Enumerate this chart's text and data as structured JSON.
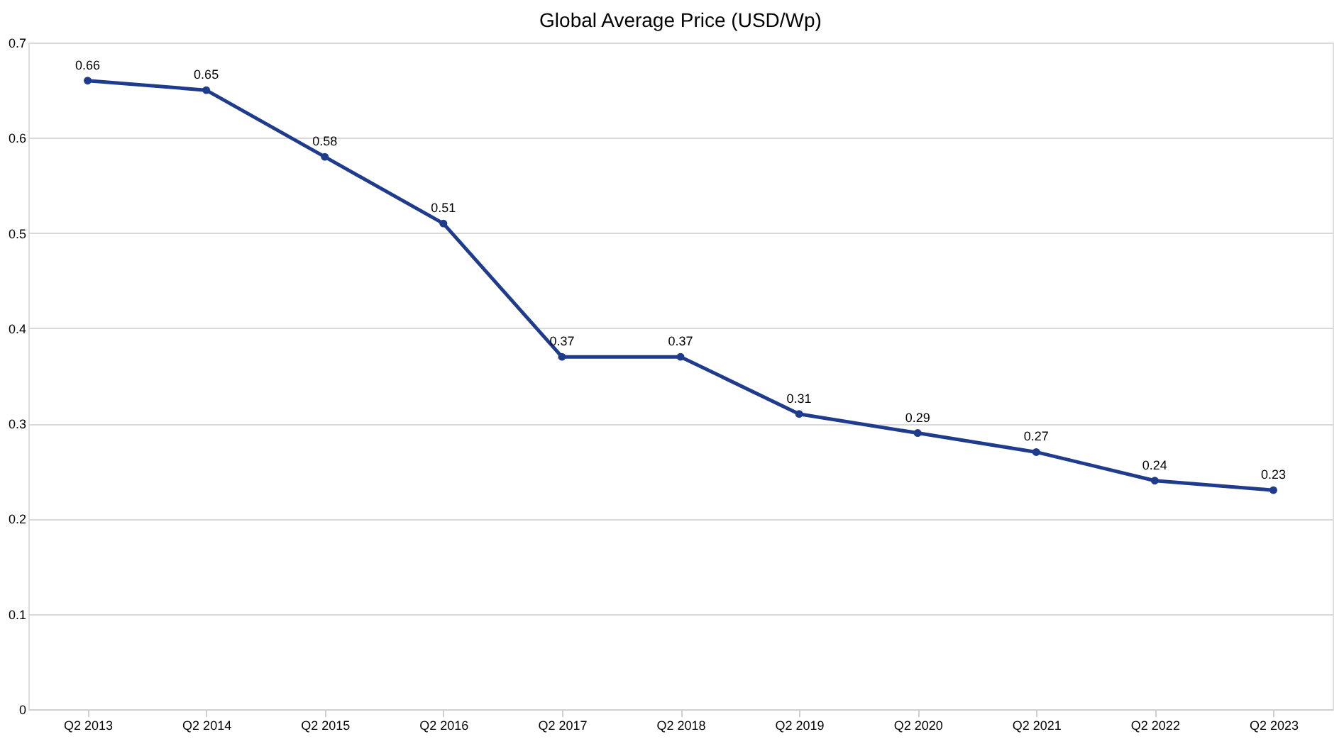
{
  "chart_data": {
    "type": "line",
    "title": "Global Average Price (USD/Wp)",
    "categories": [
      "Q2 2013",
      "Q2 2014",
      "Q2 2015",
      "Q2 2016",
      "Q2 2017",
      "Q2 2018",
      "Q2 2019",
      "Q2 2020",
      "Q2 2021",
      "Q2 2022",
      "Q2 2023"
    ],
    "series": [
      {
        "color": "#1f3b8c",
        "values": [
          0.66,
          0.65,
          0.58,
          0.51,
          0.37,
          0.37,
          0.31,
          0.29,
          0.27,
          0.24,
          0.23
        ]
      }
    ],
    "ylim": [
      0,
      0.7
    ],
    "yticks": [
      0,
      0.1,
      0.2,
      0.3,
      0.4,
      0.5,
      0.6,
      0.7
    ],
    "grid": "y",
    "marker": "circle",
    "line_style": "solid",
    "data_labels": true
  }
}
